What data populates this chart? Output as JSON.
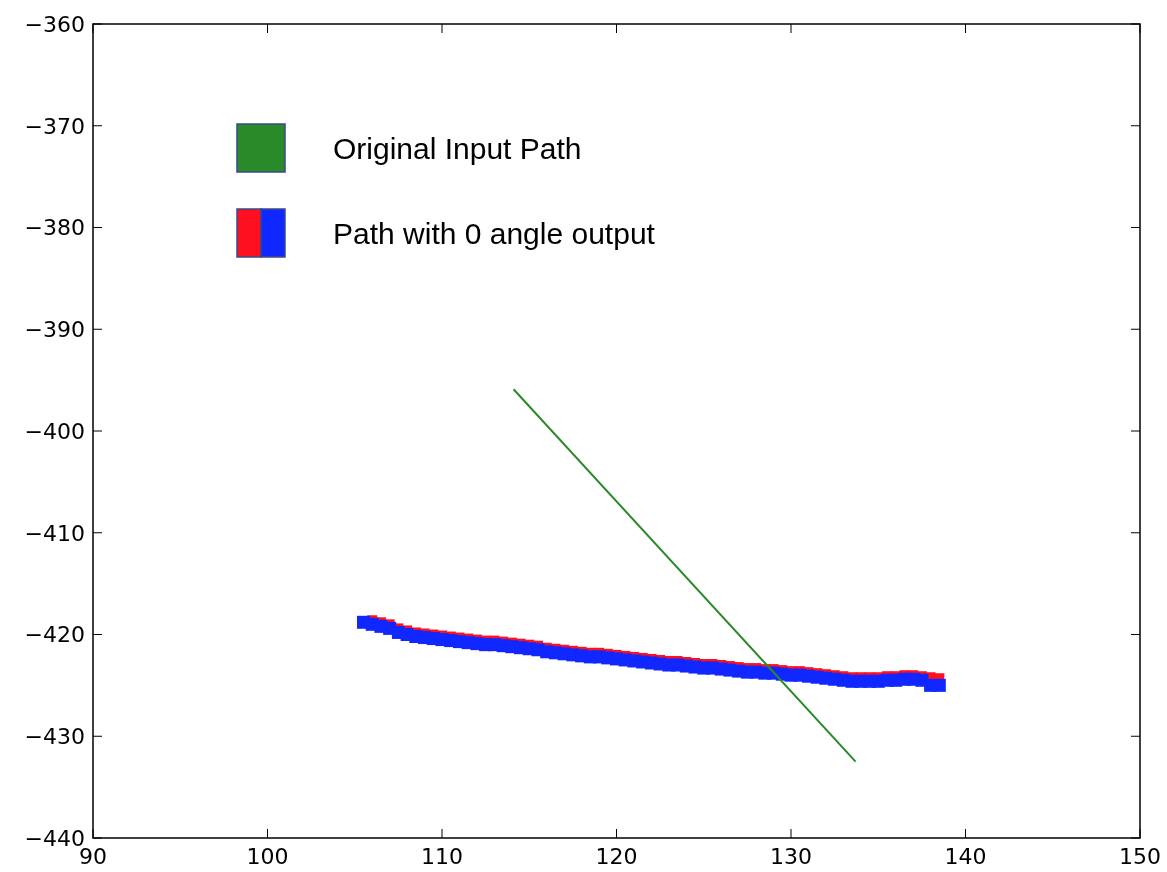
{
  "chart_data": {
    "type": "scatter",
    "legend": "top left",
    "grid": false,
    "xlim": [
      90,
      150
    ],
    "ylim": [
      -440,
      -360
    ],
    "xticks": [
      90,
      100,
      110,
      120,
      130,
      140,
      150
    ],
    "yticks": [
      {
        "value": -440,
        "label": "−440"
      },
      {
        "value": -430,
        "label": "−430"
      },
      {
        "value": -420,
        "label": "−420"
      },
      {
        "value": -410,
        "label": "−410"
      },
      {
        "value": -400,
        "label": "−400"
      },
      {
        "value": -390,
        "label": "−390"
      },
      {
        "value": -380,
        "label": "−380"
      },
      {
        "value": -370,
        "label": "−370"
      },
      {
        "value": -360,
        "label": "−360"
      }
    ],
    "series": [
      {
        "name": "Original Input Path",
        "type": "line",
        "marker": "none",
        "color": "#2a8a2a",
        "x": [
          114.1,
          133.7
        ],
        "values": [
          -395.9,
          -432.5
        ]
      },
      {
        "name": "Path with 0 angle output",
        "marker": "square",
        "color": "#ff1020",
        "x": [
          106,
          106.5,
          107,
          107.5,
          108,
          108.5,
          109,
          109.5,
          110,
          110.5,
          111,
          111.5,
          112,
          112.5,
          113,
          113.5,
          114,
          114.5,
          115,
          115.5,
          116,
          116.5,
          117,
          117.5,
          118,
          118.5,
          119,
          119.5,
          120,
          120.5,
          121,
          121.5,
          122,
          122.5,
          123,
          123.5,
          124,
          124.5,
          125,
          125.5,
          126,
          126.5,
          127,
          127.5,
          128,
          128.5,
          129,
          129.5,
          130,
          130.5,
          131,
          131.5,
          132,
          132.5,
          133,
          133.5,
          134,
          134.5,
          135,
          135.5,
          136,
          136.5,
          137,
          137.5,
          138,
          138.5
        ],
        "values": [
          -418.6,
          -418.8,
          -419.0,
          -419.4,
          -419.6,
          -419.8,
          -419.9,
          -420.0,
          -420.1,
          -420.2,
          -420.3,
          -420.4,
          -420.5,
          -420.6,
          -420.6,
          -420.7,
          -420.8,
          -420.9,
          -421.0,
          -421.1,
          -421.3,
          -421.4,
          -421.5,
          -421.6,
          -421.7,
          -421.8,
          -421.8,
          -421.9,
          -422.0,
          -422.1,
          -422.2,
          -422.3,
          -422.4,
          -422.5,
          -422.6,
          -422.6,
          -422.7,
          -422.8,
          -422.9,
          -422.9,
          -423.0,
          -423.1,
          -423.2,
          -423.3,
          -423.3,
          -423.4,
          -423.4,
          -423.5,
          -423.6,
          -423.6,
          -423.7,
          -423.8,
          -423.9,
          -424.0,
          -424.1,
          -424.2,
          -424.2,
          -424.2,
          -424.2,
          -424.1,
          -424.1,
          -424.0,
          -424.0,
          -424.1,
          -424.2,
          -424.3
        ]
      },
      {
        "marker": "square",
        "color": "#1028ff",
        "x": [
          105.5,
          106,
          106.5,
          107,
          107.5,
          108,
          108.5,
          109,
          109.5,
          110,
          110.5,
          111,
          111.5,
          112,
          112.5,
          113,
          113.5,
          114,
          114.5,
          115,
          115.5,
          116,
          116.5,
          117,
          117.5,
          118,
          118.5,
          119,
          119.5,
          120,
          120.5,
          121,
          121.5,
          122,
          122.5,
          123,
          123.5,
          124,
          124.5,
          125,
          125.5,
          126,
          126.5,
          127,
          127.5,
          128,
          128.5,
          129,
          129.5,
          130,
          130.5,
          131,
          131.5,
          132,
          132.5,
          133,
          133.5,
          134,
          134.5,
          135,
          135.5,
          136,
          136.5,
          137,
          137.5,
          138,
          138.5
        ],
        "values": [
          -418.8,
          -419.0,
          -419.2,
          -419.4,
          -419.8,
          -420.0,
          -420.2,
          -420.3,
          -420.4,
          -420.5,
          -420.6,
          -420.7,
          -420.8,
          -420.9,
          -421.0,
          -421.0,
          -421.1,
          -421.2,
          -421.3,
          -421.4,
          -421.5,
          -421.7,
          -421.8,
          -421.9,
          -422.0,
          -422.1,
          -422.2,
          -422.2,
          -422.3,
          -422.4,
          -422.5,
          -422.6,
          -422.7,
          -422.8,
          -422.9,
          -423.0,
          -423.0,
          -423.1,
          -423.2,
          -423.3,
          -423.3,
          -423.4,
          -423.5,
          -423.6,
          -423.7,
          -423.7,
          -423.8,
          -423.8,
          -423.9,
          -424.0,
          -424.0,
          -424.1,
          -424.2,
          -424.3,
          -424.4,
          -424.5,
          -424.6,
          -424.6,
          -424.6,
          -424.6,
          -424.5,
          -424.5,
          -424.4,
          -424.4,
          -424.5,
          -425.0,
          -425.0
        ]
      }
    ]
  }
}
